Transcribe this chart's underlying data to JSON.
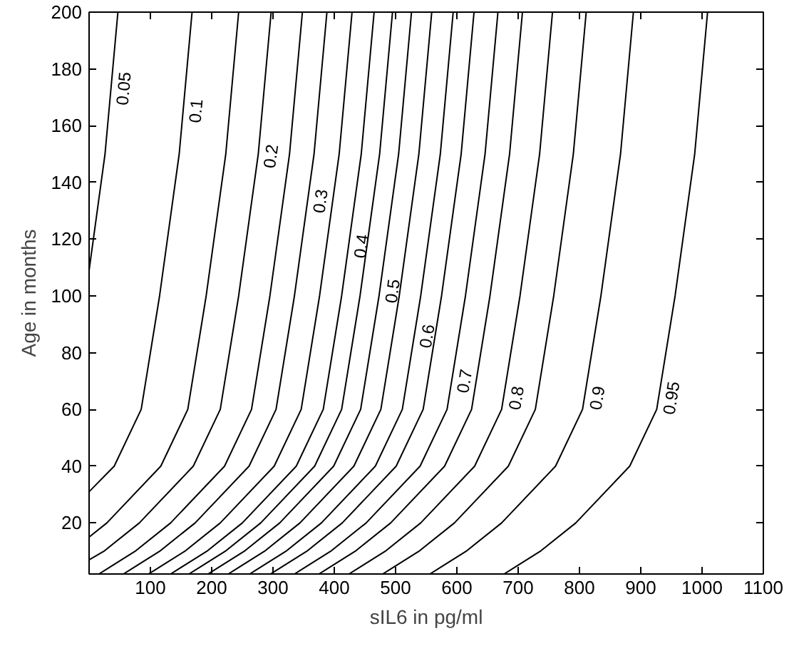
{
  "chart_data": {
    "type": "line",
    "xlabel": "sIL6 in pg/ml",
    "ylabel": "Age in months",
    "xlim": [
      0,
      1100
    ],
    "ylim": [
      2,
      200
    ],
    "xticks": [
      100,
      200,
      300,
      400,
      500,
      600,
      700,
      800,
      900,
      1000,
      1100
    ],
    "yticks": [
      20,
      40,
      60,
      80,
      100,
      120,
      140,
      160,
      180,
      200
    ],
    "grid": false,
    "marker": "none",
    "line_style": "solid",
    "series": [
      {
        "name": "0.05",
        "color": "#000000",
        "x": [
          0,
          26,
          47
        ],
        "values": [
          109,
          150,
          200
        ]
      },
      {
        "color": "#000000",
        "x": [
          0,
          41,
          85,
          115,
          147,
          168
        ],
        "values": [
          31,
          40,
          60,
          100,
          150,
          200
        ],
        "name": "0.1"
      },
      {
        "color": "#000000",
        "x": [
          0,
          29,
          117,
          161,
          191,
          223,
          244
        ],
        "values": [
          15,
          20,
          40,
          60,
          100,
          150,
          200
        ]
      },
      {
        "name": "0.2",
        "color": "#000000",
        "x": [
          0,
          24,
          82,
          170,
          214,
          244,
          276,
          297
        ],
        "values": [
          7,
          10,
          20,
          40,
          60,
          100,
          150,
          200
        ]
      },
      {
        "color": "#000000",
        "x": [
          16,
          38,
          75,
          133,
          221,
          265,
          295,
          327,
          348
        ],
        "values": [
          2,
          5,
          10,
          20,
          40,
          60,
          100,
          150,
          200
        ]
      },
      {
        "name": "0.3",
        "color": "#000000",
        "x": [
          56,
          78,
          115,
          173,
          261,
          305,
          335,
          367,
          388
        ],
        "values": [
          2,
          5,
          10,
          20,
          40,
          60,
          100,
          150,
          200
        ]
      },
      {
        "color": "#000000",
        "x": [
          97,
          119,
          156,
          214,
          302,
          346,
          376,
          408,
          429
        ],
        "values": [
          2,
          5,
          10,
          20,
          40,
          60,
          100,
          150,
          200
        ]
      },
      {
        "name": "0.4",
        "color": "#000000",
        "x": [
          133,
          155,
          192,
          250,
          338,
          382,
          412,
          444,
          465
        ],
        "values": [
          2,
          5,
          10,
          20,
          40,
          60,
          100,
          150,
          200
        ]
      },
      {
        "color": "#000000",
        "x": [
          163,
          185,
          222,
          280,
          368,
          412,
          442,
          474,
          495
        ],
        "values": [
          2,
          5,
          10,
          20,
          40,
          60,
          100,
          150,
          200
        ]
      },
      {
        "name": "0.5",
        "color": "#000000",
        "x": [
          194,
          216,
          253,
          311,
          399,
          443,
          473,
          505,
          526
        ],
        "values": [
          2,
          5,
          10,
          20,
          40,
          60,
          100,
          150,
          200
        ]
      },
      {
        "color": "#000000",
        "x": [
          227,
          249,
          286,
          344,
          432,
          476,
          506,
          538,
          559
        ],
        "values": [
          2,
          5,
          10,
          20,
          40,
          60,
          100,
          150,
          200
        ]
      },
      {
        "name": "0.6",
        "color": "#000000",
        "x": [
          262,
          284,
          321,
          379,
          467,
          511,
          541,
          573,
          594
        ],
        "values": [
          2,
          5,
          10,
          20,
          40,
          60,
          100,
          150,
          200
        ]
      },
      {
        "color": "#000000",
        "x": [
          296,
          318,
          355,
          413,
          501,
          545,
          575,
          607,
          628
        ],
        "values": [
          2,
          5,
          10,
          20,
          40,
          60,
          100,
          150,
          200
        ]
      },
      {
        "name": "0.7",
        "color": "#000000",
        "x": [
          335,
          357,
          394,
          452,
          540,
          584,
          614,
          646,
          667
        ],
        "values": [
          2,
          5,
          10,
          20,
          40,
          60,
          100,
          150,
          200
        ]
      },
      {
        "color": "#000000",
        "x": [
          375,
          397,
          434,
          492,
          580,
          624,
          654,
          686,
          707
        ],
        "values": [
          2,
          5,
          10,
          20,
          40,
          60,
          100,
          150,
          200
        ]
      },
      {
        "name": "0.8",
        "color": "#000000",
        "x": [
          424,
          446,
          483,
          541,
          629,
          673,
          703,
          735,
          756
        ],
        "values": [
          2,
          5,
          10,
          20,
          40,
          60,
          100,
          150,
          200
        ]
      },
      {
        "color": "#000000",
        "x": [
          479,
          501,
          538,
          596,
          684,
          728,
          758,
          790,
          811
        ],
        "values": [
          2,
          5,
          10,
          20,
          40,
          60,
          100,
          150,
          200
        ]
      },
      {
        "name": "0.9",
        "color": "#000000",
        "x": [
          556,
          578,
          615,
          673,
          761,
          805,
          835,
          867,
          888
        ],
        "values": [
          2,
          5,
          10,
          20,
          40,
          60,
          100,
          150,
          200
        ]
      },
      {
        "name": "0.95",
        "color": "#000000",
        "x": [
          677,
          699,
          736,
          794,
          882,
          926,
          956,
          988,
          1009
        ],
        "values": [
          2,
          5,
          10,
          20,
          40,
          60,
          100,
          150,
          200
        ]
      }
    ]
  }
}
